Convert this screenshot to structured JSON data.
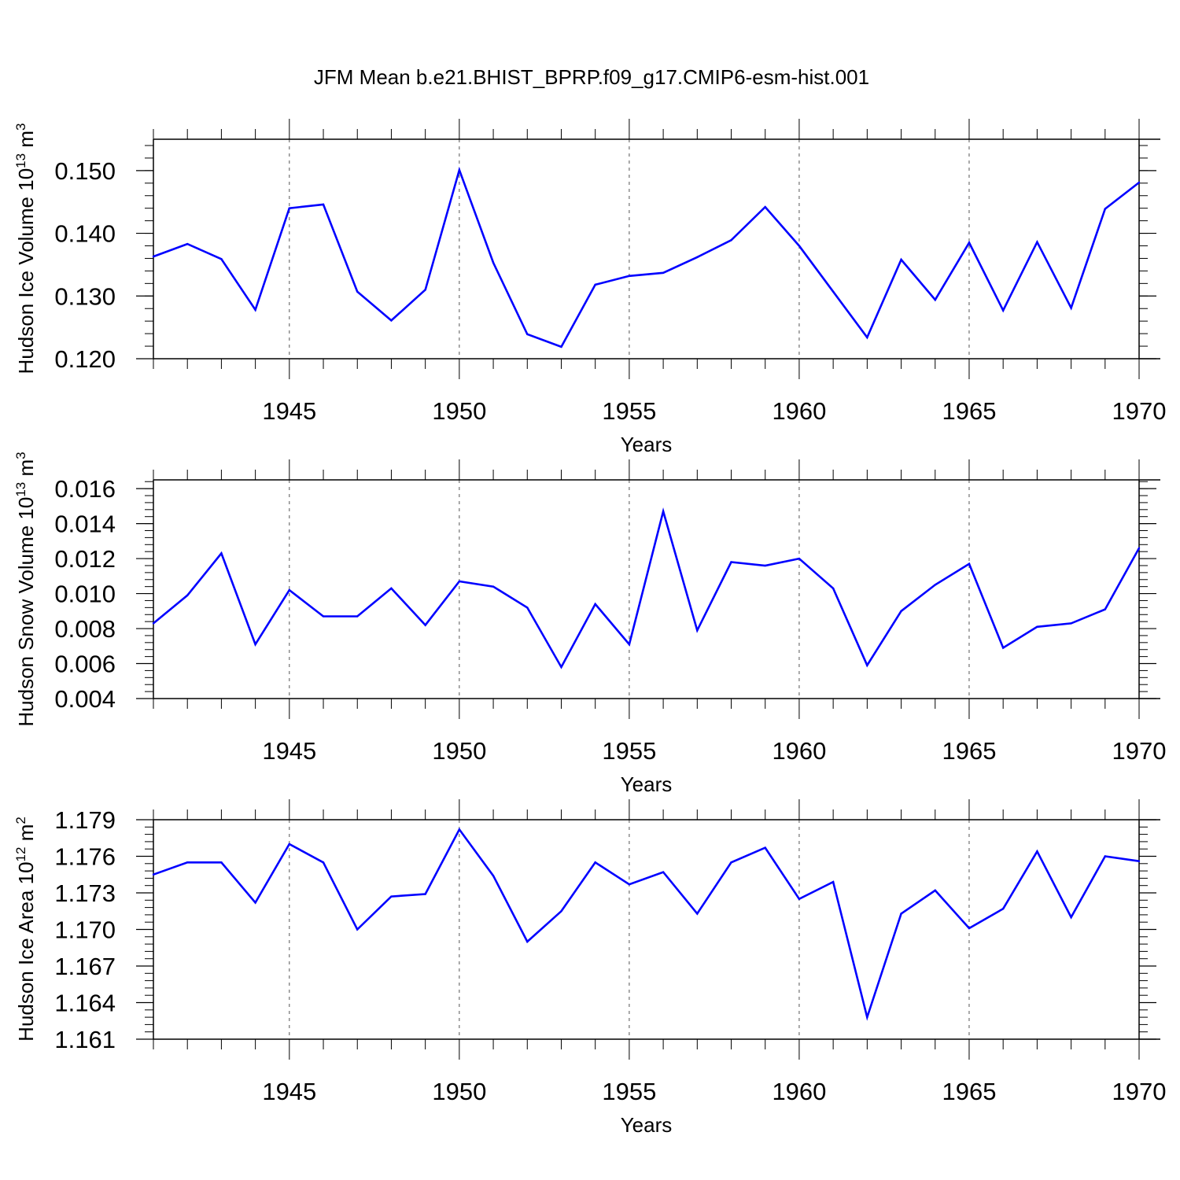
{
  "title": "JFM Mean b.e21.BHIST_BPRP.f09_g17.CMIP6-esm-hist.001",
  "colors": {
    "line": "#0000ff",
    "axis": "#000000",
    "grid": "#555555"
  },
  "chart_data": [
    {
      "type": "line",
      "name": "ice-volume",
      "ylabel": {
        "main": "Hudson Ice Volume 10",
        "exp": "13",
        "unit": " m",
        "unit_exp": "3"
      },
      "xlabel": "Years",
      "xlim": [
        1941,
        1970
      ],
      "ylim": [
        0.12,
        0.155
      ],
      "yticks": [
        "0.120",
        "0.130",
        "0.140",
        "0.150"
      ],
      "xticks": [
        "1945",
        "1950",
        "1955",
        "1960",
        "1965",
        "1970"
      ],
      "grid_x": [
        1945,
        1950,
        1955,
        1960,
        1965
      ],
      "x": [
        1941,
        1942,
        1943,
        1944,
        1945,
        1946,
        1947,
        1948,
        1949,
        1950,
        1951,
        1952,
        1953,
        1954,
        1955,
        1956,
        1957,
        1958,
        1959,
        1960,
        1961,
        1962,
        1963,
        1964,
        1965,
        1966,
        1967,
        1968,
        1969,
        1970
      ],
      "values": [
        0.1363,
        0.1383,
        0.1359,
        0.1278,
        0.144,
        0.1446,
        0.1307,
        0.1261,
        0.131,
        0.1501,
        0.1353,
        0.1239,
        0.1219,
        0.1318,
        0.1332,
        0.1337,
        0.1362,
        0.1389,
        0.1442,
        0.138,
        0.1307,
        0.1234,
        0.1358,
        0.1294,
        0.1385,
        0.1277,
        0.1386,
        0.1281,
        0.1439,
        0.1481
      ]
    },
    {
      "type": "line",
      "name": "snow-volume",
      "ylabel": {
        "main": "Hudson Snow Volume 10",
        "exp": "13",
        "unit": " m",
        "unit_exp": "3"
      },
      "xlabel": "Years",
      "xlim": [
        1941,
        1970
      ],
      "ylim": [
        0.004,
        0.0165
      ],
      "yticks": [
        "0.004",
        "0.006",
        "0.008",
        "0.010",
        "0.012",
        "0.014",
        "0.016"
      ],
      "xticks": [
        "1945",
        "1950",
        "1955",
        "1960",
        "1965",
        "1970"
      ],
      "grid_x": [
        1945,
        1950,
        1955,
        1960,
        1965
      ],
      "x": [
        1941,
        1942,
        1943,
        1944,
        1945,
        1946,
        1947,
        1948,
        1949,
        1950,
        1951,
        1952,
        1953,
        1954,
        1955,
        1956,
        1957,
        1958,
        1959,
        1960,
        1961,
        1962,
        1963,
        1964,
        1965,
        1966,
        1967,
        1968,
        1969,
        1970
      ],
      "values": [
        0.0083,
        0.0099,
        0.0123,
        0.0071,
        0.0102,
        0.0087,
        0.0087,
        0.0103,
        0.0082,
        0.0107,
        0.0104,
        0.0092,
        0.0058,
        0.0094,
        0.0071,
        0.0147,
        0.0079,
        0.0118,
        0.0116,
        0.012,
        0.0103,
        0.0059,
        0.009,
        0.0105,
        0.0117,
        0.0069,
        0.0081,
        0.0083,
        0.0091,
        0.0126
      ]
    },
    {
      "type": "line",
      "name": "ice-area",
      "ylabel": {
        "main": "Hudson Ice Area 10",
        "exp": "12",
        "unit": " m",
        "unit_exp": "2"
      },
      "xlabel": "Years",
      "xlim": [
        1941,
        1970
      ],
      "ylim": [
        1.161,
        1.179
      ],
      "yticks": [
        "1.161",
        "1.164",
        "1.167",
        "1.170",
        "1.173",
        "1.176",
        "1.179"
      ],
      "xticks": [
        "1945",
        "1950",
        "1955",
        "1960",
        "1965",
        "1970"
      ],
      "grid_x": [
        1945,
        1950,
        1955,
        1960,
        1965
      ],
      "x": [
        1941,
        1942,
        1943,
        1944,
        1945,
        1946,
        1947,
        1948,
        1949,
        1950,
        1951,
        1952,
        1953,
        1954,
        1955,
        1956,
        1957,
        1958,
        1959,
        1960,
        1961,
        1962,
        1963,
        1964,
        1965,
        1966,
        1967,
        1968,
        1969,
        1970
      ],
      "values": [
        1.1745,
        1.1755,
        1.1755,
        1.1722,
        1.177,
        1.1755,
        1.17,
        1.1727,
        1.1729,
        1.1782,
        1.1744,
        1.169,
        1.1715,
        1.1755,
        1.1737,
        1.1747,
        1.1713,
        1.1755,
        1.1767,
        1.1725,
        1.1739,
        1.1628,
        1.1713,
        1.1732,
        1.1701,
        1.1717,
        1.1764,
        1.171,
        1.176,
        1.1756
      ]
    }
  ]
}
